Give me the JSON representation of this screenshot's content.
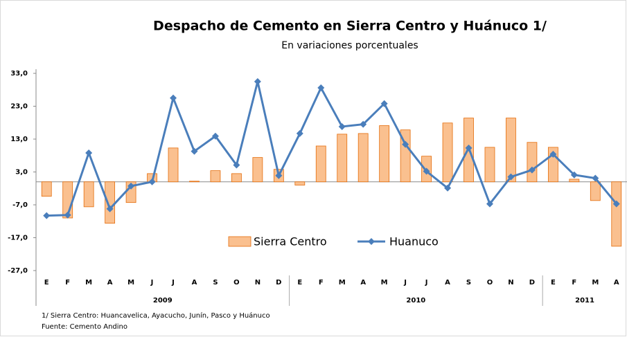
{
  "chart_data": {
    "type": "bar_line",
    "title": "Despacho de Cemento en Sierra Centro y Huánuco 1/",
    "subtitle": "En variaciones porcentuales",
    "groups": [
      {
        "year": "2009",
        "months": [
          "E",
          "F",
          "M",
          "A",
          "M",
          "J",
          "J",
          "A",
          "S",
          "O",
          "N",
          "D"
        ]
      },
      {
        "year": "2010",
        "months": [
          "E",
          "F",
          "M",
          "A",
          "M",
          "J",
          "J",
          "A",
          "S",
          "O",
          "N",
          "D"
        ]
      },
      {
        "year": "2011",
        "months": [
          "E",
          "F",
          "M",
          "A"
        ]
      }
    ],
    "series": [
      {
        "name": "Sierra Centro",
        "type": "bar",
        "color": "#fac08f",
        "edge": "#e46c0a",
        "values": [
          -4.4,
          -11.0,
          -7.6,
          -12.6,
          -6.3,
          2.5,
          10.3,
          0.2,
          3.4,
          2.5,
          7.4,
          3.8,
          -1.0,
          10.9,
          14.5,
          14.7,
          17.1,
          15.8,
          7.8,
          17.9,
          19.4,
          10.5,
          19.4,
          12.0,
          10.5,
          0.8,
          -5.7,
          -19.6
        ]
      },
      {
        "name": "Huanuco",
        "type": "line",
        "color": "#4a7ebb",
        "values": [
          -10.3,
          -10.1,
          8.8,
          -8.2,
          -1.3,
          0.0,
          25.5,
          9.3,
          13.9,
          5.1,
          30.5,
          1.9,
          14.7,
          28.6,
          16.8,
          17.5,
          23.8,
          11.4,
          3.2,
          -1.9,
          10.3,
          -6.7,
          1.5,
          3.6,
          8.4,
          2.1,
          1.1,
          -6.7
        ]
      }
    ],
    "ylim": [
      -27,
      33
    ],
    "yticks": [
      {
        "value": 33,
        "label": "33,0"
      },
      {
        "value": 23,
        "label": "23,0"
      },
      {
        "value": 13,
        "label": "13,0"
      },
      {
        "value": 3,
        "label": "3,0"
      },
      {
        "value": -7,
        "label": "-7,0"
      },
      {
        "value": -17,
        "label": "-17,0"
      },
      {
        "value": -27,
        "label": "-27,0"
      }
    ],
    "footnotes": [
      "1/ Sierra Centro: Huancavelica,  Ayacucho, Junín, Pasco y Huánuco",
      "Fuente: Cemento Andino"
    ]
  }
}
